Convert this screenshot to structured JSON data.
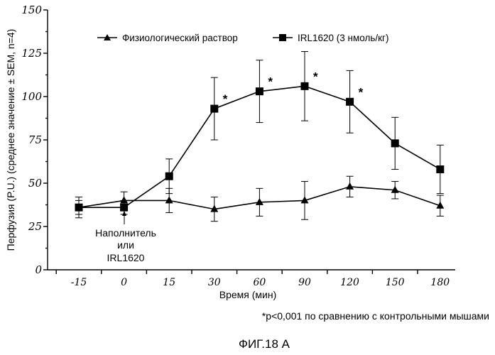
{
  "chart_data": {
    "type": "line",
    "categories": [
      "-15",
      "0",
      "15",
      "30",
      "60",
      "90",
      "120",
      "150",
      "180"
    ],
    "yticks": [
      "0",
      "25",
      "50",
      "75",
      "100",
      "125",
      "150"
    ],
    "ylim": [
      0,
      150
    ],
    "xlabel": "Время (мин)",
    "ylabel": "Перфузия (P.U.) (среднее значение ± SEM, n=4)",
    "legend_position": "top",
    "series": [
      {
        "name": "Физиологический раствор",
        "marker": "triangle",
        "values": [
          36,
          40,
          40,
          35,
          39,
          40,
          48,
          46,
          37
        ],
        "errors": [
          6,
          5,
          7,
          7,
          8,
          11,
          6,
          5,
          6
        ]
      },
      {
        "name": "IRL1620 (3 нмоль/кг)",
        "marker": "square",
        "values": [
          36,
          36,
          54,
          93,
          103,
          106,
          97,
          73,
          58
        ],
        "errors": [
          4,
          4,
          10,
          18,
          18,
          20,
          18,
          15,
          14
        ],
        "significant_indices": [
          3,
          4,
          5,
          6
        ]
      }
    ],
    "annotations": {
      "significance_marker": "*",
      "injection_note_lines": [
        "Наполнитель",
        "или",
        "IRL1620"
      ],
      "footnote": "*p<0,001 по сравнению с контрольными мышами"
    }
  },
  "figure_caption": "ФИГ.18 А"
}
